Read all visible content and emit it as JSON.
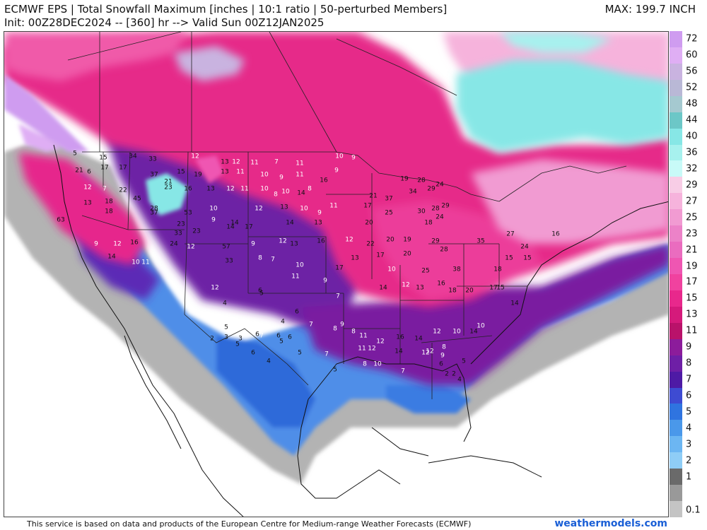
{
  "header": {
    "title": "ECMWF EPS | Total Snowfall Maximum [inches | 10:1 ratio | 50-perturbed Members]",
    "init": "Init: 00Z28DEC2024 -- [360] hr --> Valid Sun 00Z12JAN2025",
    "max": "MAX: 199.7 INCH"
  },
  "legend": {
    "labels": [
      "72",
      "60",
      "56",
      "52",
      "48",
      "44",
      "40",
      "36",
      "32",
      "29",
      "27",
      "25",
      "23",
      "21",
      "19",
      "17",
      "15",
      "13",
      "11",
      "9",
      "8",
      "7",
      "6",
      "5",
      "4",
      "3",
      "2",
      "1",
      "0.1"
    ],
    "colors": [
      "#c89ce6",
      "#d7b0ef",
      "#b8a0d9",
      "#a9a6cf",
      "#98b9c6",
      "#5fc4c4",
      "#7fe6e6",
      "#9ef2ef",
      "#c6fbf9",
      "#f9c7e4",
      "#f5aedb",
      "#f090cf",
      "#ea74c2",
      "#e85fb8",
      "#f04ba8",
      "#f35aa9",
      "#f2479c",
      "#e62989",
      "#cc1873",
      "#8b1f9c",
      "#6d20a5",
      "#4d1ca7",
      "#5a34c8",
      "#2f6ad9",
      "#4b8ee6",
      "#6fb0f0",
      "#8ec9f5",
      "#a8dcf8",
      "#b7b7b7",
      "#999999",
      "#d6d6d6"
    ],
    "scale_colors": [
      "#cf9cf0",
      "#dfaef4",
      "#c9b3e0",
      "#b9b8d6",
      "#a5c9d0",
      "#6cc7c7",
      "#87e7e6",
      "#a7f1ee",
      "#c8faf8",
      "#f8cde6",
      "#f6b3dc",
      "#f19bd2",
      "#ec82c8",
      "#ea6cbf",
      "#ef56b2",
      "#f0429f",
      "#e8288c",
      "#d51a7b",
      "#b9126a",
      "#8c1c9b",
      "#6e1fa6",
      "#4e1aa5",
      "#3e4bd2",
      "#2f74e0",
      "#4a98ea",
      "#6cb6f2",
      "#8fcdf6",
      "#6a6a6a",
      "#999999",
      "#c4c4c4"
    ]
  },
  "map_labels": [
    {
      "v": "5"
    },
    {
      "v": "15"
    },
    {
      "v": "17"
    },
    {
      "v": "34"
    },
    {
      "v": "33"
    },
    {
      "v": "12"
    },
    {
      "v": "13"
    },
    {
      "v": "12"
    },
    {
      "v": "11"
    },
    {
      "v": "7"
    },
    {
      "v": "11"
    },
    {
      "v": "10"
    },
    {
      "v": "9"
    },
    {
      "v": "21"
    },
    {
      "v": "6"
    },
    {
      "v": "17"
    },
    {
      "v": "21"
    },
    {
      "v": "15"
    },
    {
      "v": "19"
    },
    {
      "v": "13"
    },
    {
      "v": "11"
    },
    {
      "v": "10"
    },
    {
      "v": "9"
    },
    {
      "v": "11"
    },
    {
      "v": "16"
    },
    {
      "v": "9"
    },
    {
      "v": "19"
    },
    {
      "v": "28"
    },
    {
      "v": "12"
    },
    {
      "v": "7"
    },
    {
      "v": "22"
    },
    {
      "v": "37"
    },
    {
      "v": "23"
    },
    {
      "v": "16"
    },
    {
      "v": "13"
    },
    {
      "v": "12"
    },
    {
      "v": "11"
    },
    {
      "v": "10"
    },
    {
      "v": "8"
    },
    {
      "v": "10"
    },
    {
      "v": "14"
    },
    {
      "v": "8"
    },
    {
      "v": "29"
    },
    {
      "v": "24"
    },
    {
      "v": "13"
    },
    {
      "v": "18"
    },
    {
      "v": "45"
    },
    {
      "v": "28"
    },
    {
      "v": "10"
    },
    {
      "v": "12"
    },
    {
      "v": "13"
    },
    {
      "v": "10"
    },
    {
      "v": "9"
    },
    {
      "v": "11"
    },
    {
      "v": "17"
    },
    {
      "v": "21"
    },
    {
      "v": "37"
    },
    {
      "v": "34"
    },
    {
      "v": "28"
    },
    {
      "v": "29"
    },
    {
      "v": "63"
    },
    {
      "v": "18"
    },
    {
      "v": "37"
    },
    {
      "v": "53"
    },
    {
      "v": "9"
    },
    {
      "v": "14"
    },
    {
      "v": "12"
    },
    {
      "v": "14"
    },
    {
      "v": "17"
    },
    {
      "v": "14"
    },
    {
      "v": "13"
    },
    {
      "v": "20"
    },
    {
      "v": "25"
    },
    {
      "v": "30"
    },
    {
      "v": "18"
    },
    {
      "v": "24"
    },
    {
      "v": "33"
    },
    {
      "v": "23"
    },
    {
      "v": "23"
    },
    {
      "v": "9"
    },
    {
      "v": "12"
    },
    {
      "v": "16"
    },
    {
      "v": "24"
    },
    {
      "v": "57"
    },
    {
      "v": "9"
    },
    {
      "v": "12"
    },
    {
      "v": "13"
    },
    {
      "v": "16"
    },
    {
      "v": "12"
    },
    {
      "v": "22"
    },
    {
      "v": "20"
    },
    {
      "v": "19"
    },
    {
      "v": "29"
    },
    {
      "v": "28"
    },
    {
      "v": "35"
    },
    {
      "v": "27"
    },
    {
      "v": "24"
    },
    {
      "v": "16"
    },
    {
      "v": "14"
    },
    {
      "v": "10"
    },
    {
      "v": "11"
    },
    {
      "v": "33"
    },
    {
      "v": "8"
    },
    {
      "v": "7"
    },
    {
      "v": "10"
    },
    {
      "v": "17"
    },
    {
      "v": "13"
    },
    {
      "v": "17"
    },
    {
      "v": "20"
    },
    {
      "v": "25"
    },
    {
      "v": "38"
    },
    {
      "v": "18"
    },
    {
      "v": "15"
    },
    {
      "v": "15"
    },
    {
      "v": "12"
    },
    {
      "v": "6"
    },
    {
      "v": "11"
    },
    {
      "v": "9"
    },
    {
      "v": "7"
    },
    {
      "v": "14"
    },
    {
      "v": "10"
    },
    {
      "v": "12"
    },
    {
      "v": "13"
    },
    {
      "v": "16"
    },
    {
      "v": "18"
    },
    {
      "v": "20"
    },
    {
      "v": "17"
    },
    {
      "v": "15"
    },
    {
      "v": "14"
    },
    {
      "v": "5"
    },
    {
      "v": "7"
    },
    {
      "v": "6"
    },
    {
      "v": "6"
    },
    {
      "v": "7"
    },
    {
      "v": "8"
    },
    {
      "v": "11"
    },
    {
      "v": "12"
    },
    {
      "v": "16"
    },
    {
      "v": "14"
    },
    {
      "v": "12"
    },
    {
      "v": "10"
    },
    {
      "v": "14"
    },
    {
      "v": "4"
    },
    {
      "v": "5"
    },
    {
      "v": "4"
    },
    {
      "v": "6"
    },
    {
      "v": "9"
    },
    {
      "v": "8"
    },
    {
      "v": "11"
    },
    {
      "v": "12"
    },
    {
      "v": "14"
    },
    {
      "v": "12"
    },
    {
      "v": "9"
    },
    {
      "v": "10"
    },
    {
      "v": "3"
    },
    {
      "v": "6"
    },
    {
      "v": "5"
    },
    {
      "v": "7"
    },
    {
      "v": "5"
    },
    {
      "v": "8"
    },
    {
      "v": "10"
    },
    {
      "v": "7"
    },
    {
      "v": "12"
    },
    {
      "v": "6"
    },
    {
      "v": "8"
    },
    {
      "v": "5"
    },
    {
      "v": "2"
    },
    {
      "v": "5"
    },
    {
      "v": "3"
    },
    {
      "v": "6"
    },
    {
      "v": "4"
    },
    {
      "v": "5"
    },
    {
      "v": "2"
    },
    {
      "v": "2"
    },
    {
      "v": "4"
    }
  ],
  "footer": {
    "attribution": "This service is based on data and products of the European Centre for Medium-range Weather Forecasts (ECMWF)",
    "brand": "weathermodels.com"
  }
}
